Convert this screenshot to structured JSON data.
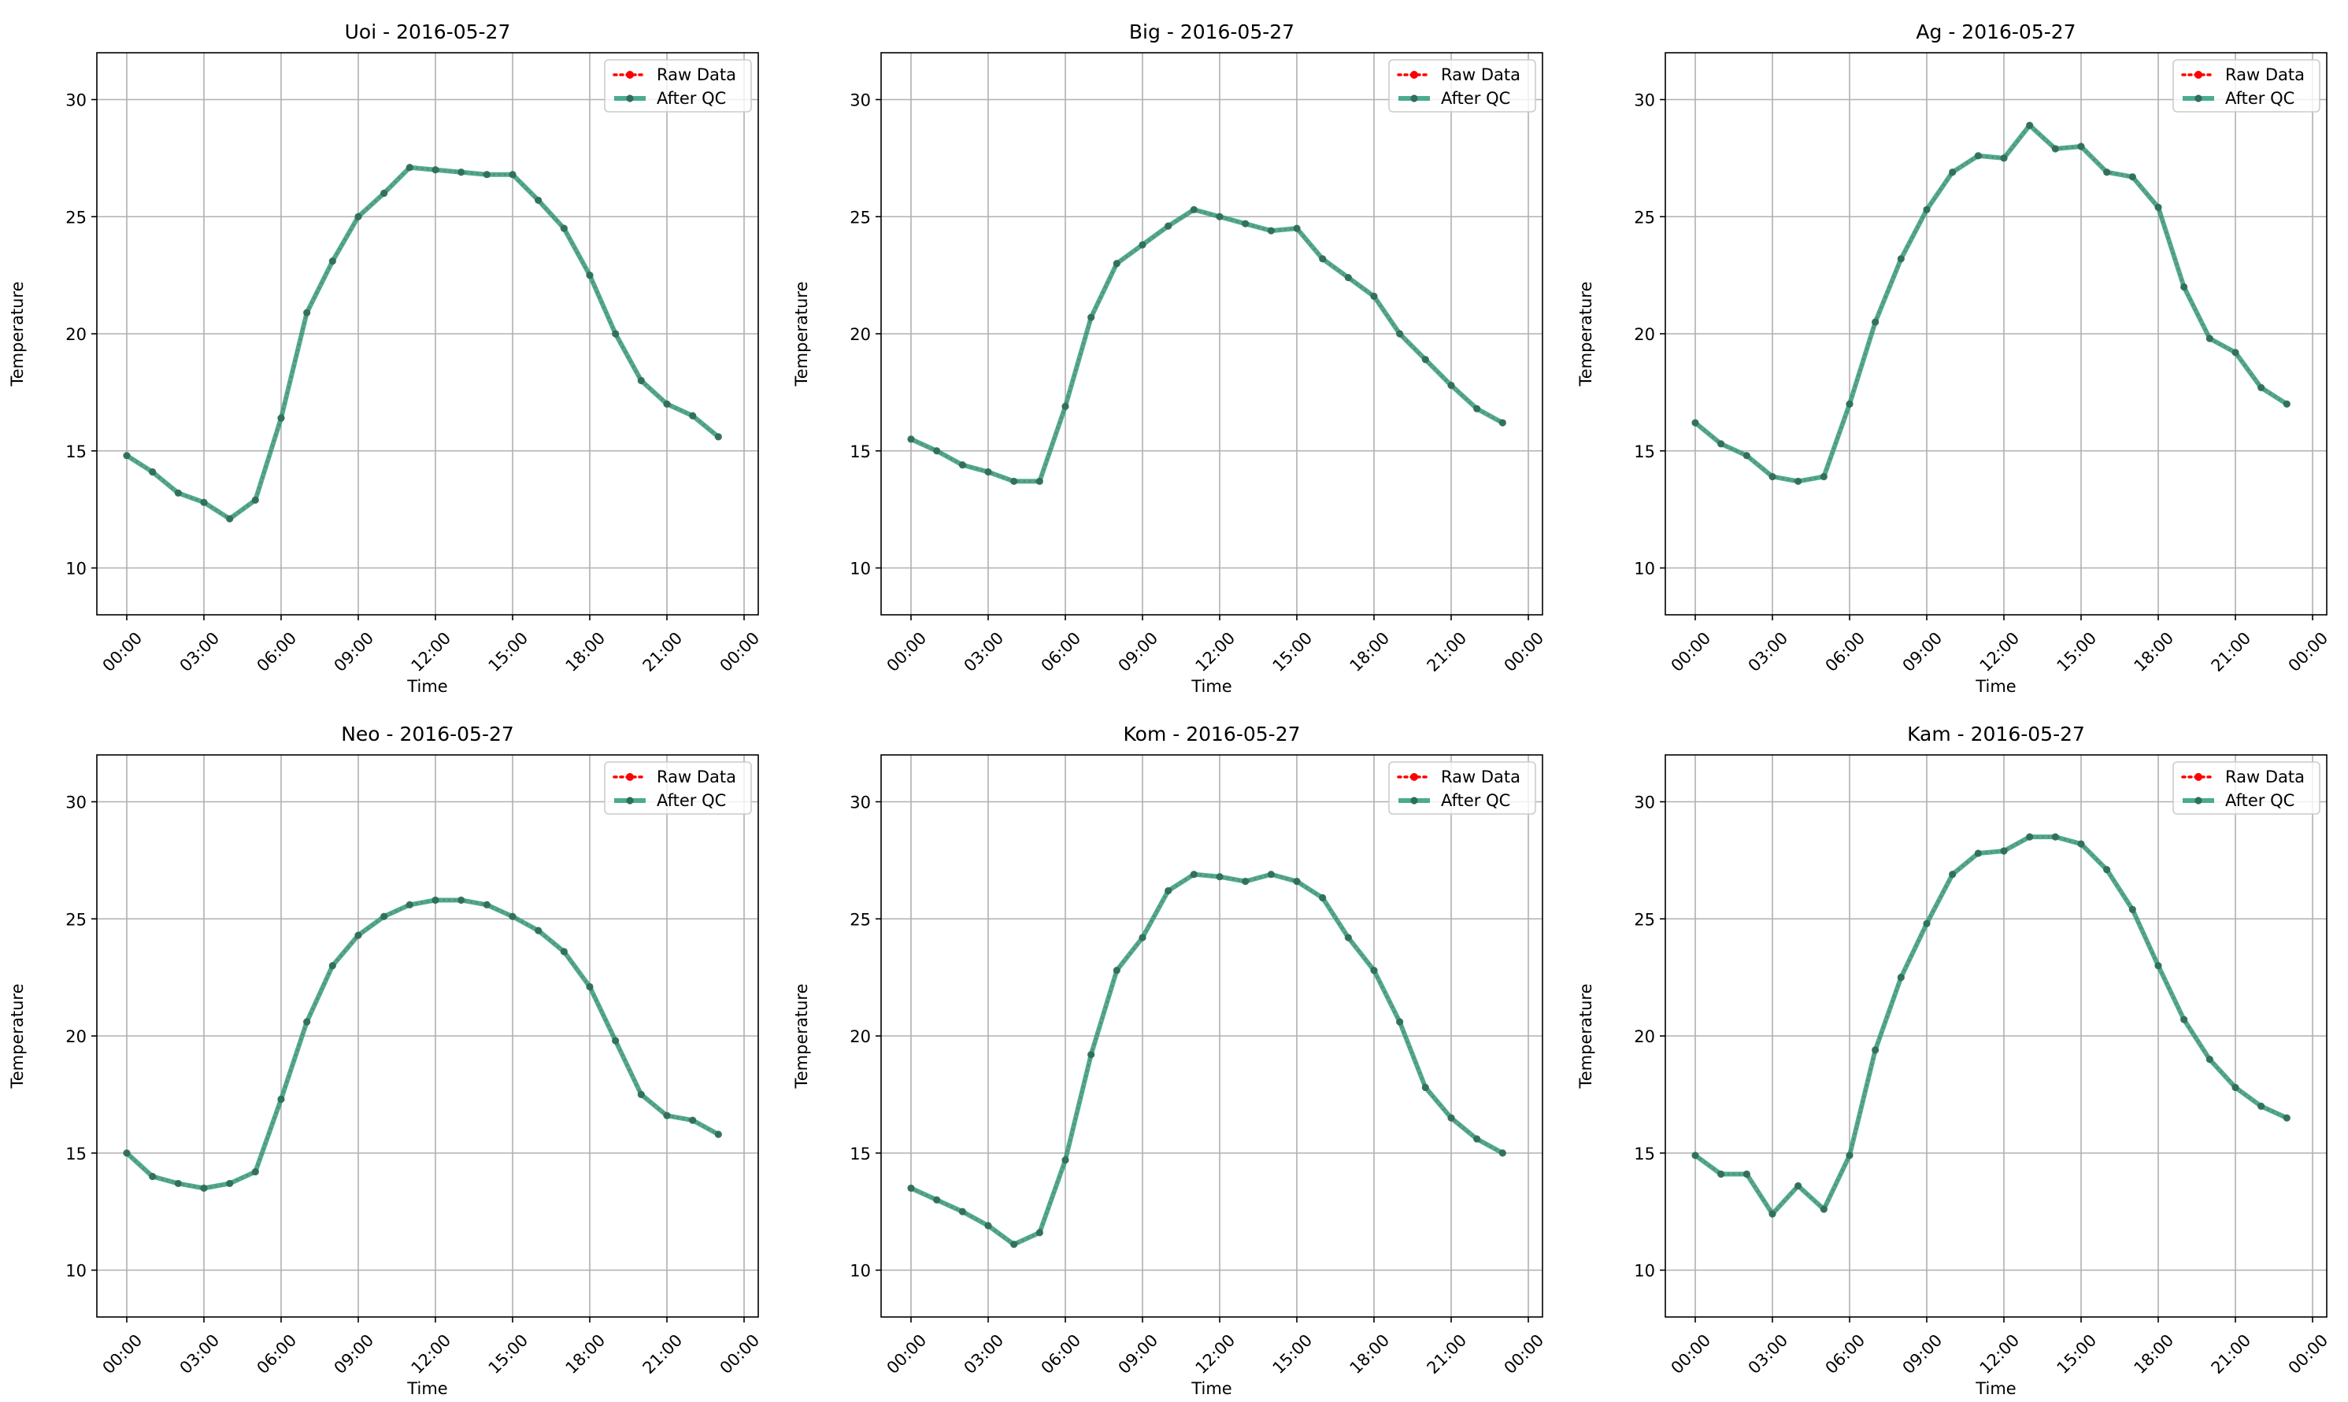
{
  "figure": {
    "xlabel": "Time",
    "ylabel": "Temperature",
    "legend": {
      "position": "top-right",
      "raw_label": "Raw Data",
      "qc_label": "After QC"
    },
    "colors": {
      "raw": "#ff0000",
      "qc_line": "#2a9d7d",
      "qc_marker": "#2f6e5a",
      "grid": "#b0b0b0",
      "axes": "#000000"
    }
  },
  "chart_data": [
    {
      "type": "line",
      "title": "Uoi - 2016-05-27",
      "xlabel": "Time",
      "ylabel": "Temperature",
      "x": [
        "00:00",
        "01:00",
        "02:00",
        "03:00",
        "04:00",
        "05:00",
        "06:00",
        "07:00",
        "08:00",
        "09:00",
        "10:00",
        "11:00",
        "12:00",
        "13:00",
        "14:00",
        "15:00",
        "16:00",
        "17:00",
        "18:00",
        "19:00",
        "20:00",
        "21:00",
        "22:00",
        "23:00"
      ],
      "xticks": [
        "00:00",
        "03:00",
        "06:00",
        "09:00",
        "12:00",
        "15:00",
        "18:00",
        "21:00",
        "00:00"
      ],
      "yticks": [
        10,
        15,
        20,
        25,
        30
      ],
      "ylim": [
        8,
        32
      ],
      "grid": true,
      "legend": "top-right",
      "series": [
        {
          "name": "Raw Data",
          "values": [
            14.8,
            14.1,
            13.2,
            12.8,
            12.1,
            12.9,
            16.4,
            20.9,
            23.1,
            25.0,
            26.0,
            27.1,
            27.0,
            26.9,
            26.8,
            26.8,
            25.7,
            24.5,
            22.5,
            20.0,
            18.0,
            17.0,
            16.5,
            15.6
          ]
        },
        {
          "name": "After QC",
          "values": [
            14.8,
            14.1,
            13.2,
            12.8,
            12.1,
            12.9,
            16.4,
            20.9,
            23.1,
            25.0,
            26.0,
            27.1,
            27.0,
            26.9,
            26.8,
            26.8,
            25.7,
            24.5,
            22.5,
            20.0,
            18.0,
            17.0,
            16.5,
            15.6
          ]
        }
      ]
    },
    {
      "type": "line",
      "title": "Big - 2016-05-27",
      "xlabel": "Time",
      "ylabel": "Temperature",
      "x": [
        "00:00",
        "01:00",
        "02:00",
        "03:00",
        "04:00",
        "05:00",
        "06:00",
        "07:00",
        "08:00",
        "09:00",
        "10:00",
        "11:00",
        "12:00",
        "13:00",
        "14:00",
        "15:00",
        "16:00",
        "17:00",
        "18:00",
        "19:00",
        "20:00",
        "21:00",
        "22:00",
        "23:00"
      ],
      "xticks": [
        "00:00",
        "03:00",
        "06:00",
        "09:00",
        "12:00",
        "15:00",
        "18:00",
        "21:00",
        "00:00"
      ],
      "yticks": [
        10,
        15,
        20,
        25,
        30
      ],
      "ylim": [
        8,
        32
      ],
      "grid": true,
      "legend": "top-right",
      "series": [
        {
          "name": "Raw Data",
          "values": [
            15.5,
            15.0,
            14.4,
            14.1,
            13.7,
            13.7,
            16.9,
            20.7,
            23.0,
            23.8,
            24.6,
            25.3,
            25.0,
            24.7,
            24.4,
            24.5,
            23.2,
            22.4,
            21.6,
            20.0,
            18.9,
            17.8,
            16.8,
            16.2
          ]
        },
        {
          "name": "After QC",
          "values": [
            15.5,
            15.0,
            14.4,
            14.1,
            13.7,
            13.7,
            16.9,
            20.7,
            23.0,
            23.8,
            24.6,
            25.3,
            25.0,
            24.7,
            24.4,
            24.5,
            23.2,
            22.4,
            21.6,
            20.0,
            18.9,
            17.8,
            16.8,
            16.2
          ]
        }
      ]
    },
    {
      "type": "line",
      "title": "Ag - 2016-05-27",
      "xlabel": "Time",
      "ylabel": "Temperature",
      "x": [
        "00:00",
        "01:00",
        "02:00",
        "03:00",
        "04:00",
        "05:00",
        "06:00",
        "07:00",
        "08:00",
        "09:00",
        "10:00",
        "11:00",
        "12:00",
        "13:00",
        "14:00",
        "15:00",
        "16:00",
        "17:00",
        "18:00",
        "19:00",
        "20:00",
        "21:00",
        "22:00",
        "23:00"
      ],
      "xticks": [
        "00:00",
        "03:00",
        "06:00",
        "09:00",
        "12:00",
        "15:00",
        "18:00",
        "21:00",
        "00:00"
      ],
      "yticks": [
        10,
        15,
        20,
        25,
        30
      ],
      "ylim": [
        8,
        32
      ],
      "grid": true,
      "legend": "top-right",
      "series": [
        {
          "name": "Raw Data",
          "values": [
            16.2,
            15.3,
            14.8,
            13.9,
            13.7,
            13.9,
            17.0,
            20.5,
            23.2,
            25.3,
            26.9,
            27.6,
            27.5,
            28.9,
            27.9,
            28.0,
            26.9,
            26.7,
            25.4,
            22.0,
            19.8,
            19.2,
            17.7,
            17.0
          ]
        },
        {
          "name": "After QC",
          "values": [
            16.2,
            15.3,
            14.8,
            13.9,
            13.7,
            13.9,
            17.0,
            20.5,
            23.2,
            25.3,
            26.9,
            27.6,
            27.5,
            28.9,
            27.9,
            28.0,
            26.9,
            26.7,
            25.4,
            22.0,
            19.8,
            19.2,
            17.7,
            17.0
          ]
        }
      ]
    },
    {
      "type": "line",
      "title": "Neo - 2016-05-27",
      "xlabel": "Time",
      "ylabel": "Temperature",
      "x": [
        "00:00",
        "01:00",
        "02:00",
        "03:00",
        "04:00",
        "05:00",
        "06:00",
        "07:00",
        "08:00",
        "09:00",
        "10:00",
        "11:00",
        "12:00",
        "13:00",
        "14:00",
        "15:00",
        "16:00",
        "17:00",
        "18:00",
        "19:00",
        "20:00",
        "21:00",
        "22:00",
        "23:00"
      ],
      "xticks": [
        "00:00",
        "03:00",
        "06:00",
        "09:00",
        "12:00",
        "15:00",
        "18:00",
        "21:00",
        "00:00"
      ],
      "yticks": [
        10,
        15,
        20,
        25,
        30
      ],
      "ylim": [
        8,
        32
      ],
      "grid": true,
      "legend": "top-right",
      "series": [
        {
          "name": "Raw Data",
          "values": [
            15.0,
            14.0,
            13.7,
            13.5,
            13.7,
            14.2,
            17.3,
            20.6,
            23.0,
            24.3,
            25.1,
            25.6,
            25.8,
            25.8,
            25.6,
            25.1,
            24.5,
            23.6,
            22.1,
            19.8,
            17.5,
            16.6,
            16.4,
            15.8
          ]
        },
        {
          "name": "After QC",
          "values": [
            15.0,
            14.0,
            13.7,
            13.5,
            13.7,
            14.2,
            17.3,
            20.6,
            23.0,
            24.3,
            25.1,
            25.6,
            25.8,
            25.8,
            25.6,
            25.1,
            24.5,
            23.6,
            22.1,
            19.8,
            17.5,
            16.6,
            16.4,
            15.8
          ]
        }
      ]
    },
    {
      "type": "line",
      "title": "Kom - 2016-05-27",
      "xlabel": "Time",
      "ylabel": "Temperature",
      "x": [
        "00:00",
        "01:00",
        "02:00",
        "03:00",
        "04:00",
        "05:00",
        "06:00",
        "07:00",
        "08:00",
        "09:00",
        "10:00",
        "11:00",
        "12:00",
        "13:00",
        "14:00",
        "15:00",
        "16:00",
        "17:00",
        "18:00",
        "19:00",
        "20:00",
        "21:00",
        "22:00",
        "23:00"
      ],
      "xticks": [
        "00:00",
        "03:00",
        "06:00",
        "09:00",
        "12:00",
        "15:00",
        "18:00",
        "21:00",
        "00:00"
      ],
      "yticks": [
        10,
        15,
        20,
        25,
        30
      ],
      "ylim": [
        8,
        32
      ],
      "grid": true,
      "legend": "top-right",
      "series": [
        {
          "name": "Raw Data",
          "values": [
            13.5,
            13.0,
            12.5,
            11.9,
            11.1,
            11.6,
            14.7,
            19.2,
            22.8,
            24.2,
            26.2,
            26.9,
            26.8,
            26.6,
            26.9,
            26.6,
            25.9,
            24.2,
            22.8,
            20.6,
            17.8,
            16.5,
            15.6,
            15.0
          ]
        },
        {
          "name": "After QC",
          "values": [
            13.5,
            13.0,
            12.5,
            11.9,
            11.1,
            11.6,
            14.7,
            19.2,
            22.8,
            24.2,
            26.2,
            26.9,
            26.8,
            26.6,
            26.9,
            26.6,
            25.9,
            24.2,
            22.8,
            20.6,
            17.8,
            16.5,
            15.6,
            15.0
          ]
        }
      ]
    },
    {
      "type": "line",
      "title": "Kam - 2016-05-27",
      "xlabel": "Time",
      "ylabel": "Temperature",
      "x": [
        "00:00",
        "01:00",
        "02:00",
        "03:00",
        "04:00",
        "05:00",
        "06:00",
        "07:00",
        "08:00",
        "09:00",
        "10:00",
        "11:00",
        "12:00",
        "13:00",
        "14:00",
        "15:00",
        "16:00",
        "17:00",
        "18:00",
        "19:00",
        "20:00",
        "21:00",
        "22:00",
        "23:00"
      ],
      "xticks": [
        "00:00",
        "03:00",
        "06:00",
        "09:00",
        "12:00",
        "15:00",
        "18:00",
        "21:00",
        "00:00"
      ],
      "yticks": [
        10,
        15,
        20,
        25,
        30
      ],
      "ylim": [
        8,
        32
      ],
      "grid": true,
      "legend": "top-right",
      "series": [
        {
          "name": "Raw Data",
          "values": [
            14.9,
            14.1,
            14.1,
            12.4,
            13.6,
            12.6,
            14.9,
            19.4,
            22.5,
            24.8,
            26.9,
            27.8,
            27.9,
            28.5,
            28.5,
            28.2,
            27.1,
            25.4,
            23.0,
            20.7,
            19.0,
            17.8,
            17.0,
            16.5
          ]
        },
        {
          "name": "After QC",
          "values": [
            14.9,
            14.1,
            14.1,
            12.4,
            13.6,
            12.6,
            14.9,
            19.4,
            22.5,
            24.8,
            26.9,
            27.8,
            27.9,
            28.5,
            28.5,
            28.2,
            27.1,
            25.4,
            23.0,
            20.7,
            19.0,
            17.8,
            17.0,
            16.5
          ]
        }
      ]
    }
  ]
}
